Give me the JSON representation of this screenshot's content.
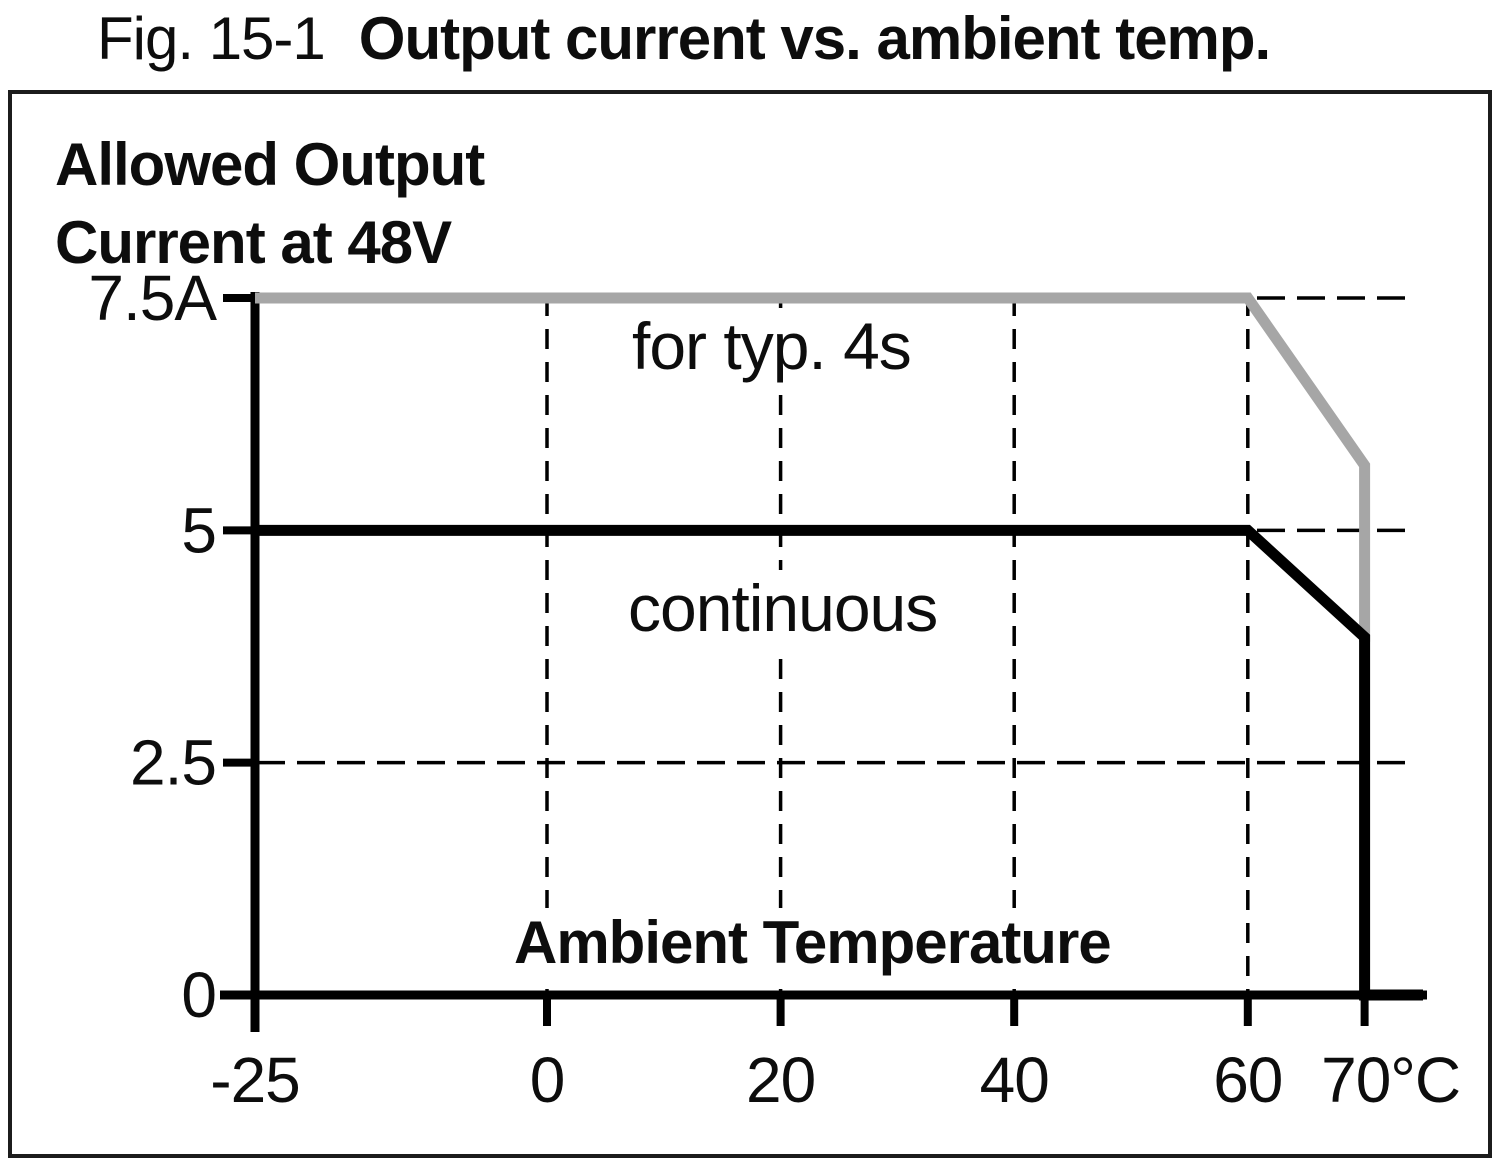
{
  "figure": {
    "number": "Fig. 15-1",
    "caption": "Output current vs. ambient temp."
  },
  "chart_data": {
    "type": "line",
    "title": "Fig. 15-1 Output current vs. ambient temp.",
    "ylabel": "Allowed Output\nCurrent at 48V",
    "xlabel": "Ambient Temperature",
    "x_unit": "°C",
    "y_unit": "A",
    "xlim": [
      -25,
      75
    ],
    "ylim": [
      0,
      7.5
    ],
    "grid": "dashed",
    "legend_position": "inline-labels",
    "x_ticks": [
      {
        "value": -25,
        "label": "-25",
        "grid": false
      },
      {
        "value": 0,
        "label": "0",
        "grid": true
      },
      {
        "value": 20,
        "label": "20",
        "grid": true
      },
      {
        "value": 40,
        "label": "40",
        "grid": true
      },
      {
        "value": 60,
        "label": "60",
        "grid": true
      },
      {
        "value": 70,
        "label": "70°C",
        "grid": false
      }
    ],
    "y_ticks": [
      {
        "value": 0,
        "label": "0",
        "grid": false
      },
      {
        "value": 2.5,
        "label": "2.5",
        "grid": true
      },
      {
        "value": 5,
        "label": "5",
        "grid": true
      },
      {
        "value": 7.5,
        "label": "7.5A",
        "grid": true
      }
    ],
    "series": [
      {
        "name": "for typ. 4s",
        "color": "#a6a6a6",
        "points": [
          [
            -25,
            7.5
          ],
          [
            60,
            7.5
          ],
          [
            70,
            5.7
          ],
          [
            70,
            3.8
          ]
        ]
      },
      {
        "name": "continuous",
        "color": "#000000",
        "points": [
          [
            -25,
            5
          ],
          [
            60,
            5
          ],
          [
            70,
            3.85
          ],
          [
            70,
            0
          ],
          [
            75,
            0
          ]
        ]
      }
    ],
    "colors": {
      "axis": "#000000",
      "grid": "#000000"
    }
  }
}
